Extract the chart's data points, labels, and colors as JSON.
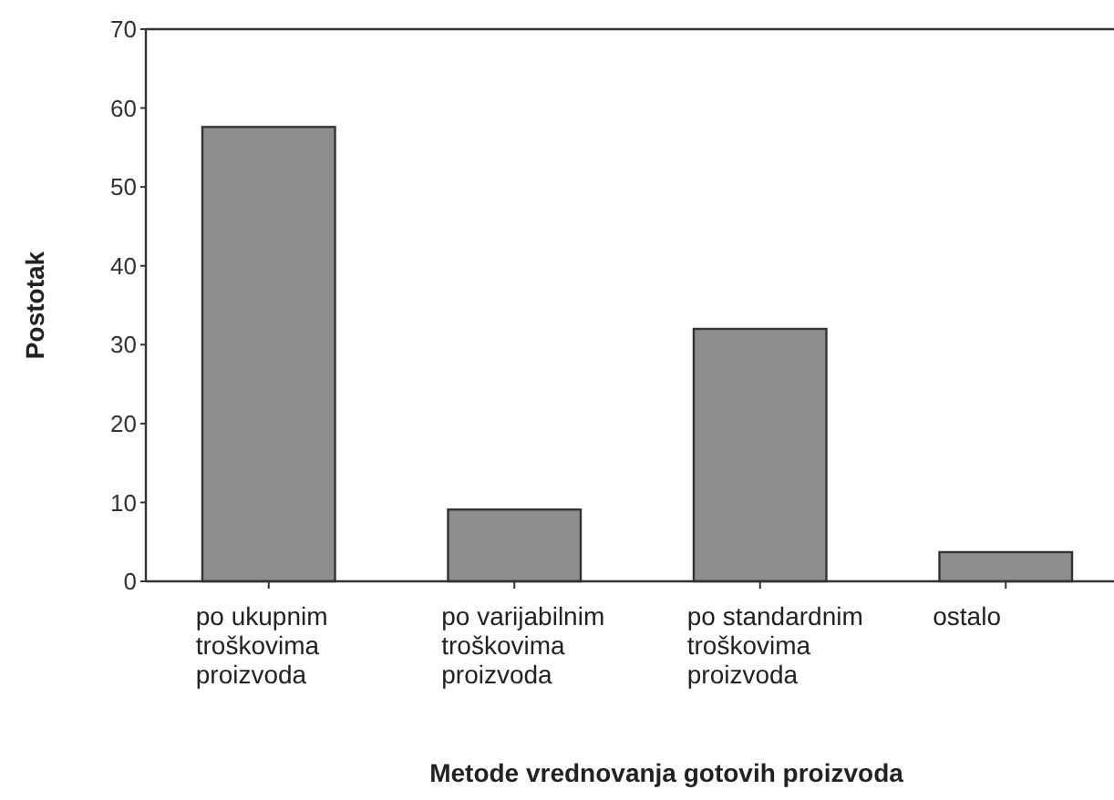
{
  "chart_data": {
    "type": "bar",
    "xlabel": "Metode vrednovanja gotovih proizvoda",
    "ylabel": "Postotak",
    "categories": [
      "po ukupnim\ntroškovima\nproizvoda",
      "po varijabilnim\ntroškovima\nproizvoda",
      "po standardnim\ntroškovima\nproizvoda",
      "ostalo"
    ],
    "values": [
      57.6,
      9.1,
      32,
      3.7
    ],
    "color": "#8e8e8e",
    "ylim": [
      0,
      70
    ],
    "yticks": [
      0,
      10,
      20,
      30,
      40,
      50,
      60,
      70
    ],
    "grid": false
  }
}
